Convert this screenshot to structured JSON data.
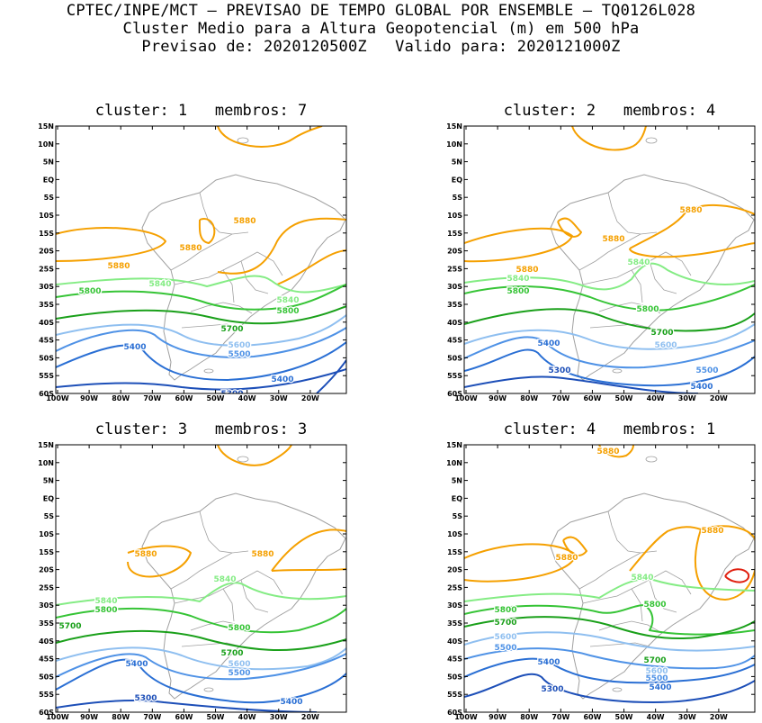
{
  "header": {
    "line1": "CPTEC/INPE/MCT — PREVISAO DE TEMPO GLOBAL POR ENSEMBLE — TQ0126L028",
    "line2": "Cluster Medio para a Altura Geopotencial (m) em 500 hPa",
    "line3": "Previsao de: 2020120500Z   Valido para: 2020121000Z"
  },
  "axes": {
    "lat_labels": [
      "15N",
      "10N",
      "5N",
      "EQ",
      "5S",
      "10S",
      "15S",
      "20S",
      "25S",
      "30S",
      "35S",
      "40S",
      "45S",
      "50S",
      "55S",
      "60S"
    ],
    "lon_labels": [
      "100W",
      "90W",
      "80W",
      "70W",
      "60W",
      "50W",
      "40W",
      "30W",
      "20W"
    ]
  },
  "colors": {
    "c5300": "#1d4fb8",
    "c5400": "#2a6fd4",
    "c5500": "#4f92e6",
    "c5600": "#8fbff0",
    "c5700": "#1aa01a",
    "c5800": "#36c436",
    "c5840": "#84ec84",
    "c5880": "#f5a000",
    "c5920": "#e02010",
    "coast": "#a0a0a0"
  },
  "panels": [
    {
      "title": "cluster: 1   membros: 7",
      "labels": [
        {
          "text": "5880",
          "c": "c5880"
        },
        {
          "text": "5880",
          "c": "c5880"
        },
        {
          "text": "5880",
          "c": "c5880"
        },
        {
          "text": "5840",
          "c": "c5840"
        },
        {
          "text": "5840",
          "c": "c5840"
        },
        {
          "text": "5800",
          "c": "c5800"
        },
        {
          "text": "5800",
          "c": "c5800"
        },
        {
          "text": "5700",
          "c": "c5700"
        },
        {
          "text": "5600",
          "c": "c5600"
        },
        {
          "text": "5500",
          "c": "c5500"
        },
        {
          "text": "5400",
          "c": "c5400"
        },
        {
          "text": "5400",
          "c": "c5400"
        },
        {
          "text": "5300",
          "c": "c5300"
        }
      ]
    },
    {
      "title": "cluster: 2   membros: 4",
      "labels": [
        {
          "text": "5880",
          "c": "c5880"
        },
        {
          "text": "5880",
          "c": "c5880"
        },
        {
          "text": "5880",
          "c": "c5880"
        },
        {
          "text": "5840",
          "c": "c5840"
        },
        {
          "text": "5840",
          "c": "c5840"
        },
        {
          "text": "5800",
          "c": "c5800"
        },
        {
          "text": "5800",
          "c": "c5800"
        },
        {
          "text": "5700",
          "c": "c5700"
        },
        {
          "text": "5600",
          "c": "c5600"
        },
        {
          "text": "5500",
          "c": "c5500"
        },
        {
          "text": "5400",
          "c": "c5400"
        },
        {
          "text": "5400",
          "c": "c5400"
        },
        {
          "text": "5300",
          "c": "c5300"
        }
      ]
    },
    {
      "title": "cluster: 3   membros: 3",
      "labels": [
        {
          "text": "5880",
          "c": "c5880"
        },
        {
          "text": "5880",
          "c": "c5880"
        },
        {
          "text": "5840",
          "c": "c5840"
        },
        {
          "text": "5840",
          "c": "c5840"
        },
        {
          "text": "5800",
          "c": "c5800"
        },
        {
          "text": "5800",
          "c": "c5800"
        },
        {
          "text": "5700",
          "c": "c5700"
        },
        {
          "text": "5700",
          "c": "c5700"
        },
        {
          "text": "5600",
          "c": "c5600"
        },
        {
          "text": "5500",
          "c": "c5500"
        },
        {
          "text": "5400",
          "c": "c5400"
        },
        {
          "text": "5400",
          "c": "c5400"
        },
        {
          "text": "5300",
          "c": "c5300"
        }
      ]
    },
    {
      "title": "cluster: 4   membros: 1",
      "labels": [
        {
          "text": "5880",
          "c": "c5880"
        },
        {
          "text": "5880",
          "c": "c5880"
        },
        {
          "text": "5880",
          "c": "c5880"
        },
        {
          "text": "5840",
          "c": "c5840"
        },
        {
          "text": "5800",
          "c": "c5800"
        },
        {
          "text": "5800",
          "c": "c5800"
        },
        {
          "text": "5700",
          "c": "c5700"
        },
        {
          "text": "5700",
          "c": "c5700"
        },
        {
          "text": "5600",
          "c": "c5600"
        },
        {
          "text": "5600",
          "c": "c5600"
        },
        {
          "text": "5500",
          "c": "c5500"
        },
        {
          "text": "5500",
          "c": "c5500"
        },
        {
          "text": "5400",
          "c": "c5400"
        },
        {
          "text": "5400",
          "c": "c5400"
        },
        {
          "text": "5300",
          "c": "c5300"
        }
      ]
    }
  ]
}
